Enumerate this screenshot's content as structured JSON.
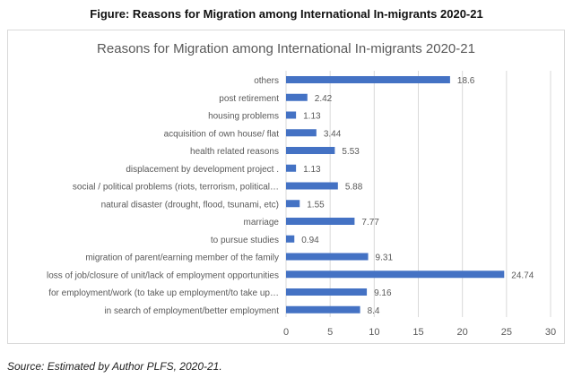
{
  "figure_caption": "Figure: Reasons for Migration among International In-migrants 2020-21",
  "source_note": "Source: Estimated by Author PLFS, 2020-21.",
  "colors": {
    "bar": "#4472c4",
    "grid": "#d9d9d9",
    "text": "#595959",
    "frame": "#d9d9d9"
  },
  "chart_data": {
    "type": "bar",
    "orientation": "horizontal",
    "title": "Reasons for Migration among International In-migrants 2020-21",
    "xlabel": "",
    "ylabel": "",
    "xlim": [
      0,
      30
    ],
    "xticks": [
      0,
      5,
      10,
      15,
      20,
      25,
      30
    ],
    "grid": true,
    "categories": [
      "others",
      "post retirement",
      "housing problems",
      "acquisition of own house/ flat",
      "health related reasons",
      "displacement by development project .",
      "social / political problems (riots, terrorism, political…",
      "natural disaster (drought, flood, tsunami, etc)",
      "marriage",
      "to pursue studies",
      "migration of parent/earning member of the family",
      "loss of job/closure of unit/lack of employment opportunities",
      "for employment/work (to take up employment/to take up…",
      "in search of employment/better employment"
    ],
    "values": [
      18.6,
      2.42,
      1.13,
      3.44,
      5.53,
      1.13,
      5.88,
      1.55,
      7.77,
      0.94,
      9.31,
      24.74,
      9.16,
      8.4
    ]
  }
}
